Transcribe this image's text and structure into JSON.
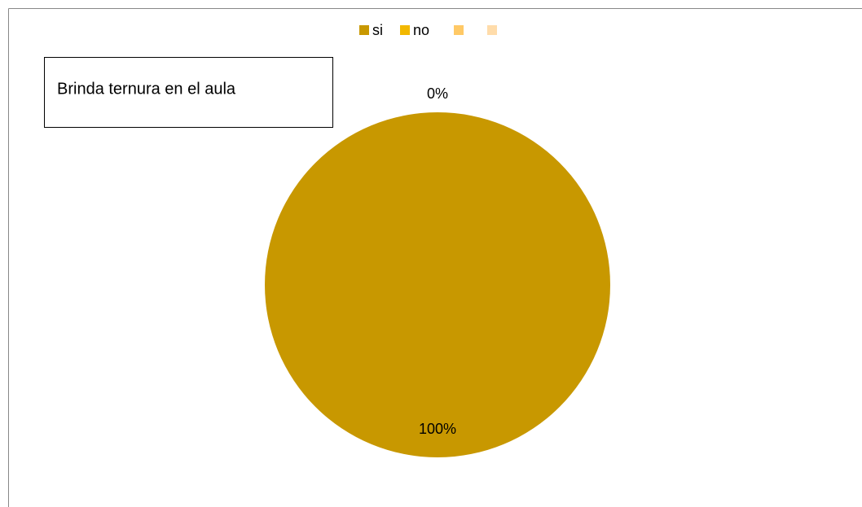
{
  "chart_data": {
    "type": "pie",
    "title": "Brinda ternura en el aula",
    "categories": [
      "si",
      "no",
      null,
      null
    ],
    "values": [
      100,
      0,
      0,
      0
    ],
    "value_labels": [
      "100%",
      "0%",
      null,
      null
    ],
    "colors": [
      "#c89800",
      "#f2b800",
      "#ffc966",
      "#ffdcaa"
    ],
    "legend": "top"
  }
}
